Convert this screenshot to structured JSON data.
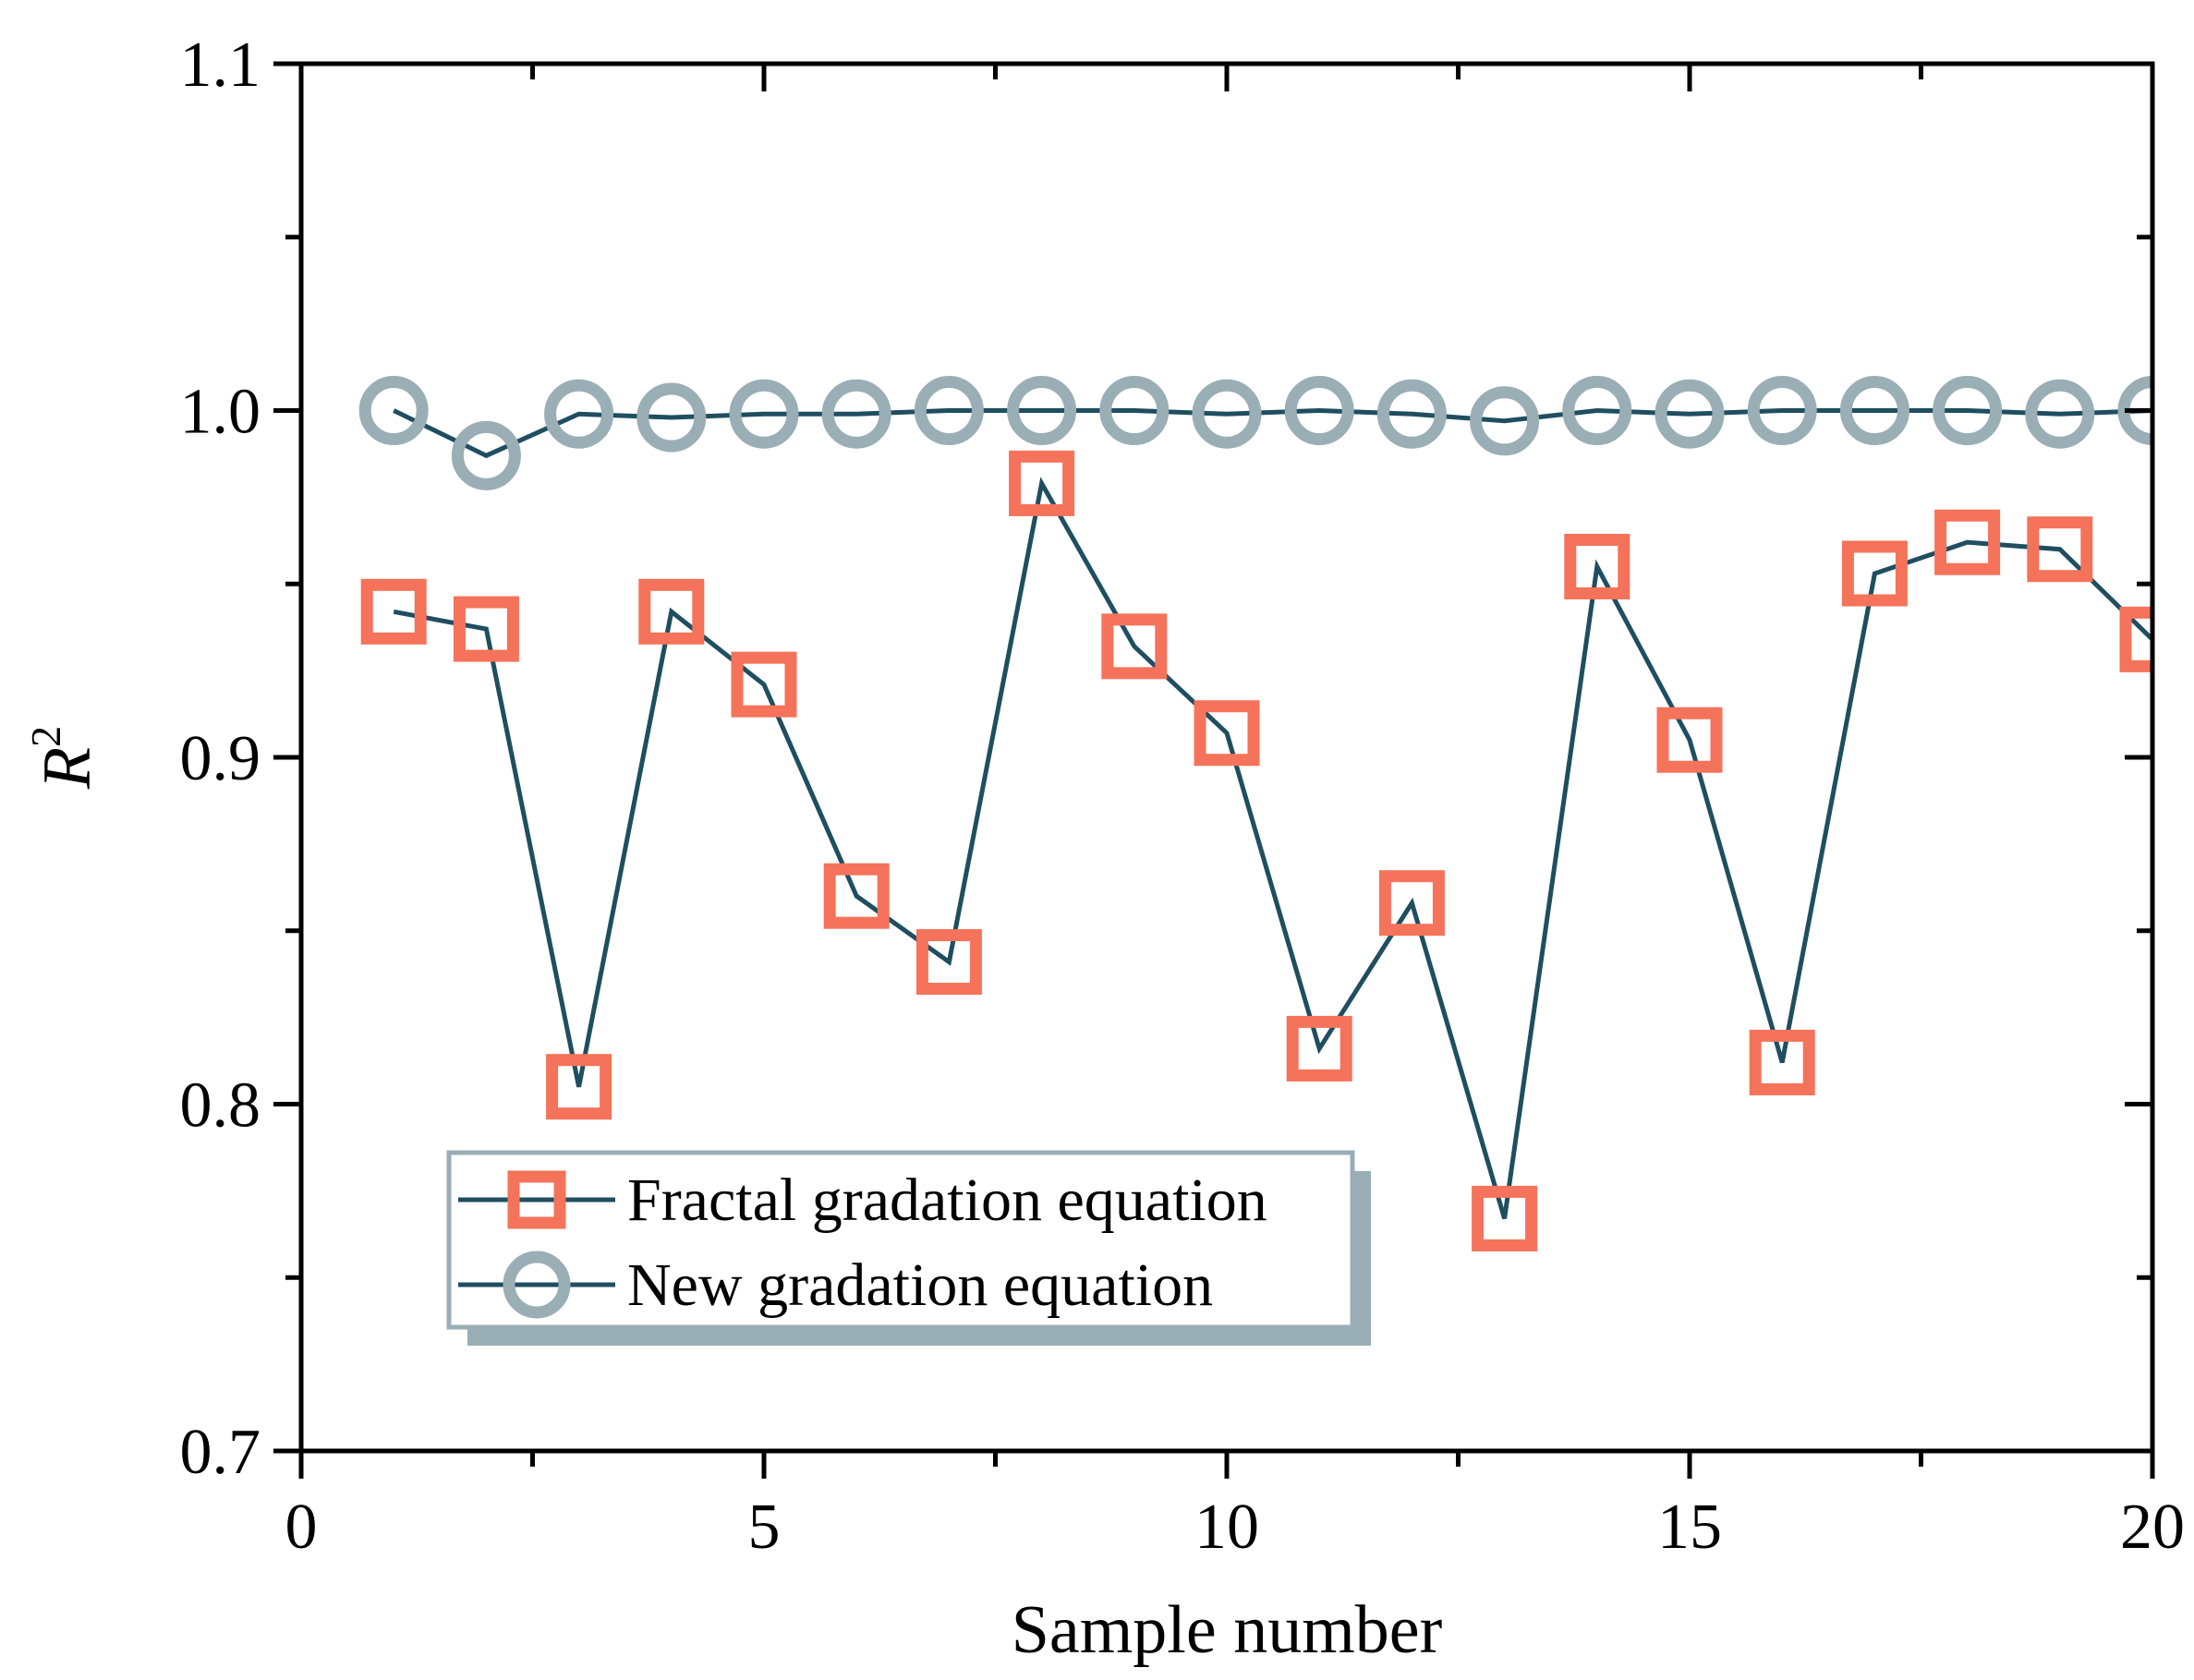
{
  "chart_data": {
    "type": "line",
    "title": "",
    "xlabel": "Sample number",
    "ylabel": "R",
    "ylabel_superscript": "2",
    "xlim": [
      0,
      20
    ],
    "ylim": [
      0.7,
      1.1
    ],
    "x_major_ticks": [
      0,
      5,
      10,
      15,
      20
    ],
    "x_tick_labels": [
      "0",
      "5",
      "10",
      "15",
      "20"
    ],
    "x_minor_ticks": [
      2.5,
      7.5,
      12.5,
      17.5
    ],
    "y_major_ticks": [
      0.7,
      0.8,
      0.9,
      1.0,
      1.1
    ],
    "y_tick_labels": [
      "0.7",
      "0.8",
      "0.9",
      "1.0",
      "1.1"
    ],
    "y_minor_ticks": [
      0.75,
      0.85,
      0.95,
      1.05
    ],
    "grid": false,
    "legend_position": "bottom-left",
    "x": [
      1,
      2,
      3,
      4,
      5,
      6,
      7,
      8,
      9,
      10,
      11,
      12,
      13,
      14,
      15,
      16,
      17,
      18,
      19,
      20
    ],
    "series": [
      {
        "name": "Fractal gradation equation",
        "marker": "square",
        "marker_color": "#f4735a",
        "line_color": "#1f4e61",
        "values": [
          0.942,
          0.937,
          0.805,
          0.942,
          0.921,
          0.86,
          0.841,
          0.979,
          0.932,
          0.907,
          0.816,
          0.858,
          0.767,
          0.955,
          0.905,
          0.812,
          0.953,
          0.962,
          0.96,
          0.934
        ]
      },
      {
        "name": "New gradation equation",
        "marker": "circle",
        "marker_color": "#9aaeb5",
        "line_color": "#1f4e61",
        "values": [
          1.0,
          0.987,
          0.999,
          0.998,
          0.999,
          0.999,
          1.0,
          1.0,
          1.0,
          0.999,
          1.0,
          0.999,
          0.997,
          1.0,
          0.999,
          1.0,
          1.0,
          1.0,
          0.999,
          1.0
        ]
      }
    ]
  }
}
